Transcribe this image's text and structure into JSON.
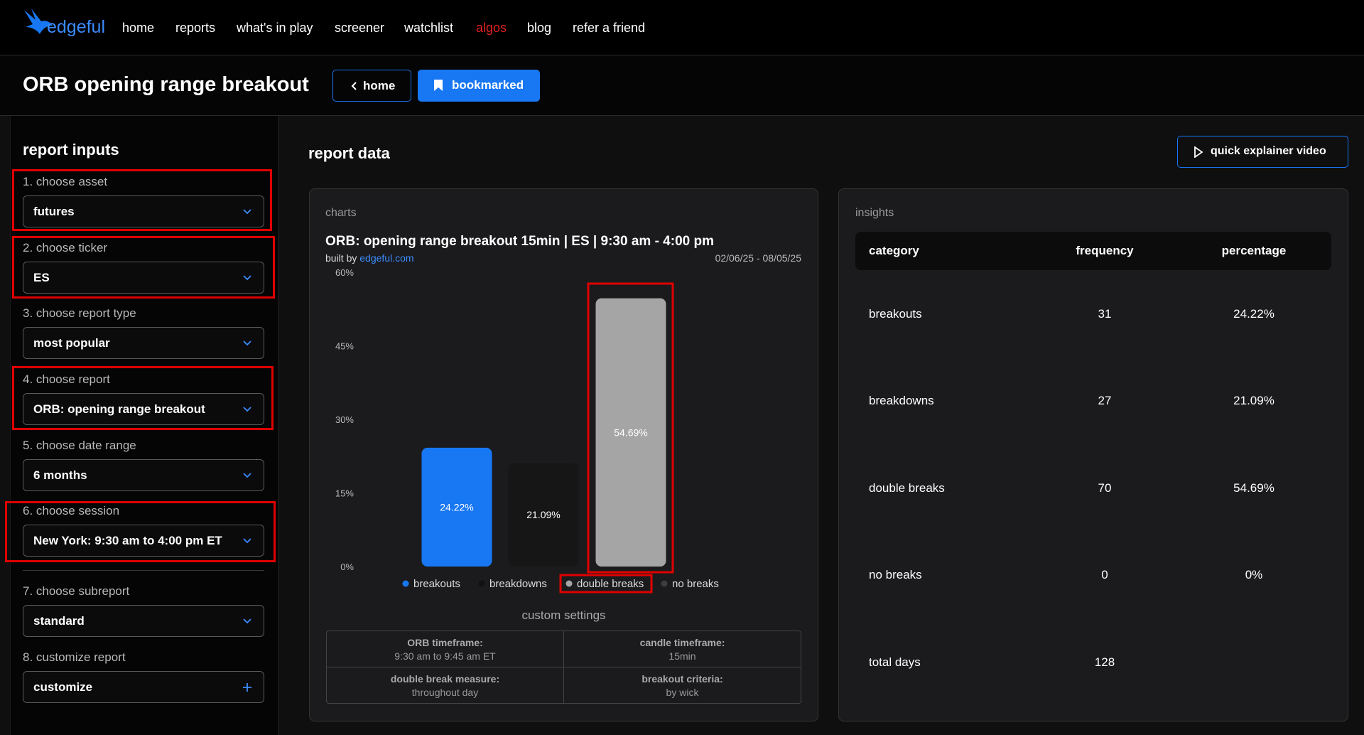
{
  "nav": {
    "logo": "edgeful",
    "items": [
      "home",
      "reports",
      "what's in play",
      "screener",
      "watchlist",
      "algos",
      "blog",
      "refer a friend"
    ]
  },
  "header": {
    "title": "ORB opening range breakout",
    "buttons": [
      "home",
      "bookmarked"
    ]
  },
  "sidebar": {
    "title": "report inputs",
    "inputs": [
      {
        "label": "1. choose asset",
        "value": "futures"
      },
      {
        "label": "2. choose ticker",
        "value": "ES"
      },
      {
        "label": "3. choose report type",
        "value": "most popular"
      },
      {
        "label": "4. choose report",
        "value": "ORB: opening range breakout"
      },
      {
        "label": "5. choose date range",
        "value": "6 months"
      },
      {
        "label": "6. choose session",
        "value": "New York: 9:30 am to 4:00 pm ET"
      },
      {
        "label": "7. choose subreport",
        "value": "standard"
      },
      {
        "label": "8. customize report",
        "value": "customize"
      }
    ]
  },
  "report": {
    "title": "report data",
    "video_button": "quick explainer video"
  },
  "charts_panel": {
    "label": "charts",
    "title": "ORB: opening range breakout 15min | ES | 9:30 am - 4:00 pm",
    "built_by": "built by",
    "site": "edgeful.com",
    "date_range": "02/06/25 - 08/05/25"
  },
  "chart_data": {
    "type": "bar",
    "categories": [
      "breakouts",
      "breakdowns",
      "double breaks",
      "no breaks"
    ],
    "values": [
      24.22,
      21.09,
      54.69,
      0
    ],
    "value_labels": [
      "24.22%",
      "21.09%",
      "54.69%",
      null
    ],
    "colors": [
      "#1877f2",
      "#161617",
      "#a5a5a5",
      "#3c3c3f"
    ],
    "ylim": [
      0,
      60
    ],
    "yticks": [
      {
        "value": 0,
        "label": "0%"
      },
      {
        "value": 15,
        "label": "15%"
      },
      {
        "value": 30,
        "label": "30%"
      },
      {
        "value": 45,
        "label": "45%"
      },
      {
        "value": 60,
        "label": "60%"
      }
    ],
    "grid": false
  },
  "custom_settings": {
    "title": "custom settings",
    "items": [
      {
        "label": "ORB timeframe:",
        "value": "9:30 am to 9:45 am ET"
      },
      {
        "label": "candle timeframe:",
        "value": "15min"
      },
      {
        "label": "double break measure:",
        "value": "throughout day"
      },
      {
        "label": "breakout criteria:",
        "value": "by wick"
      }
    ]
  },
  "insights": {
    "title": "insights",
    "columns": [
      "category",
      "frequency",
      "percentage"
    ],
    "rows": [
      [
        "breakouts",
        "31",
        "24.22%"
      ],
      [
        "breakdowns",
        "27",
        "21.09%"
      ],
      [
        "double breaks",
        "70",
        "54.69%"
      ],
      [
        "no breaks",
        "0",
        "0%"
      ],
      [
        "total days",
        "128"
      ]
    ]
  }
}
